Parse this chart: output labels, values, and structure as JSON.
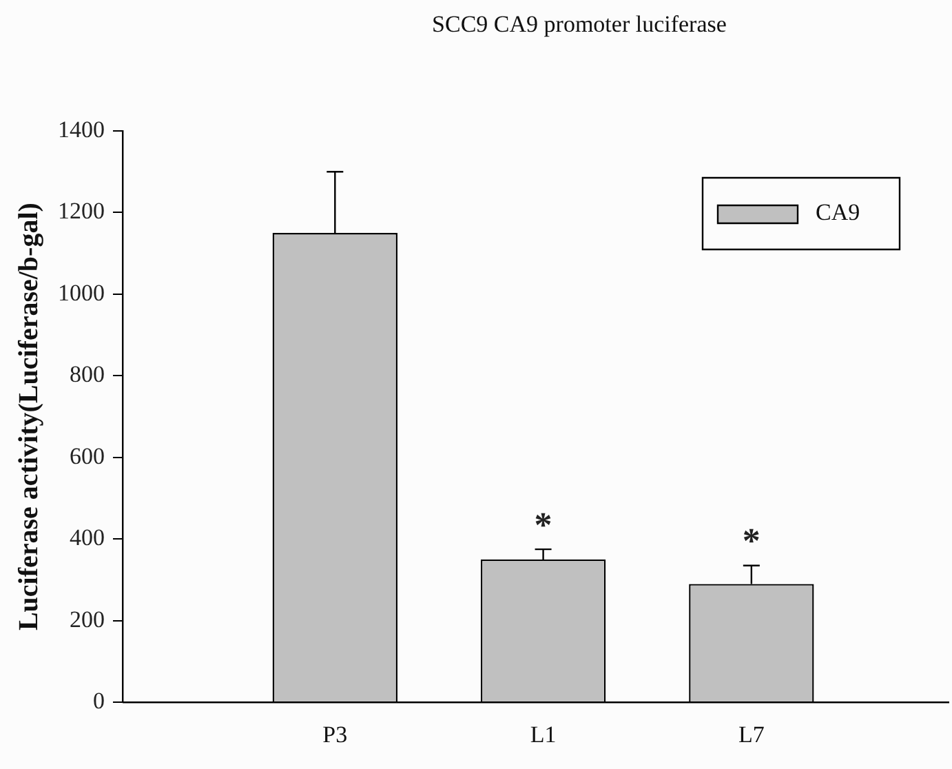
{
  "chart_data": {
    "type": "bar",
    "title": "SCC9 CA9 promoter luciferase",
    "ylabel": "Luciferase activity(Luciferase/b-gal)",
    "categories": [
      "P3",
      "L1",
      "L7"
    ],
    "series": [
      {
        "name": "CA9",
        "color": "#c0c0c0",
        "values": [
          1150,
          350,
          290
        ],
        "errors": [
          [
            1150,
            1300
          ],
          [
            350,
            375
          ],
          [
            290,
            335
          ]
        ]
      }
    ],
    "ylim": [
      0,
      1400
    ],
    "yticks": [
      0,
      200,
      400,
      600,
      800,
      1000,
      1200,
      1400
    ],
    "grid": false,
    "legend": "top right",
    "annotations": [
      "*",
      "*"
    ]
  }
}
